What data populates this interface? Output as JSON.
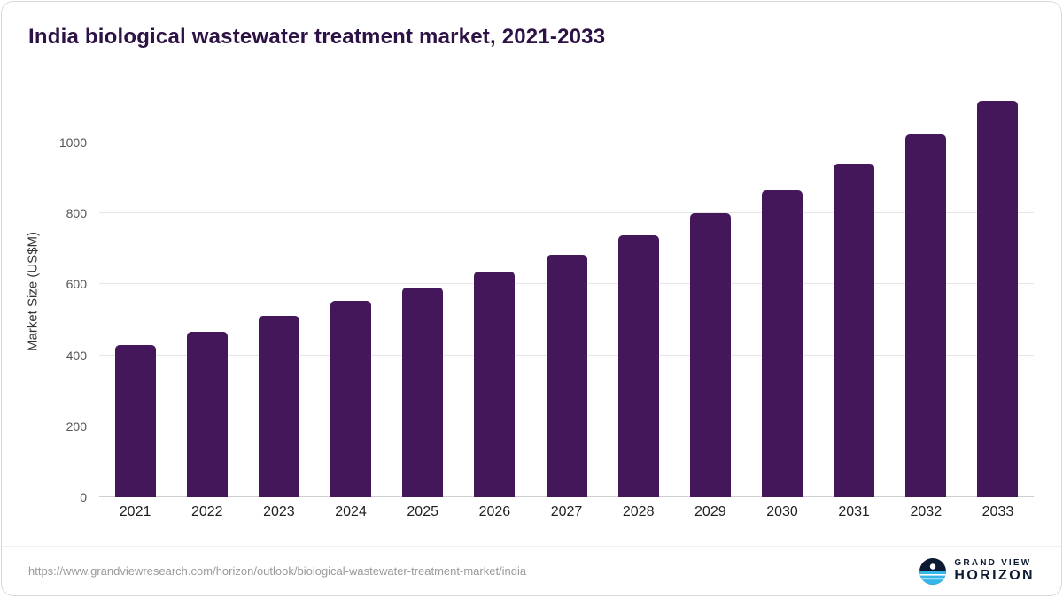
{
  "chart_data": {
    "type": "bar",
    "title": "India biological wastewater treatment market, 2021-2033",
    "categories": [
      "2021",
      "2022",
      "2023",
      "2024",
      "2025",
      "2026",
      "2027",
      "2028",
      "2029",
      "2030",
      "2031",
      "2032",
      "2033"
    ],
    "values": [
      430,
      466,
      511,
      553,
      592,
      637,
      684,
      739,
      802,
      866,
      941,
      1022,
      1118
    ],
    "xlabel": "",
    "ylabel": "Market Size (US$M)",
    "ylim": [
      0,
      1160
    ],
    "yticks": [
      0,
      200,
      400,
      600,
      800,
      1000
    ],
    "grid": "horizontal",
    "legend": "none",
    "bar_color": "#44175b"
  },
  "footer": {
    "source_url": "https://www.grandviewresearch.com/horizon/outlook/biological-wastewater-treatment-market/india",
    "brand_top": "GRAND VIEW",
    "brand_bottom": "HORIZON"
  },
  "colors": {
    "title": "#2d1245",
    "gridline": "#e6e6e6",
    "brand_navy": "#0c1b33",
    "brand_cyan": "#35b6e9"
  }
}
